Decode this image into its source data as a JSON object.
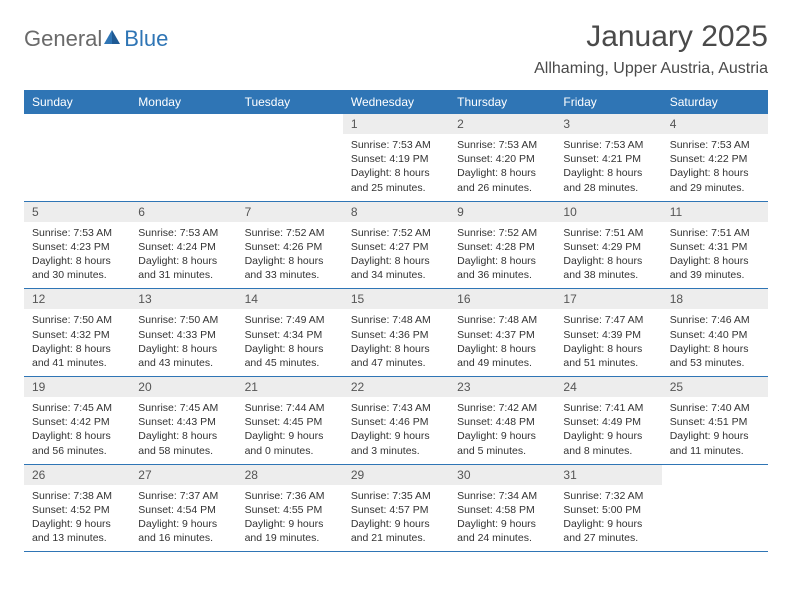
{
  "logo": {
    "text1": "General",
    "text2": "Blue"
  },
  "title": {
    "month": "January 2025",
    "location": "Allhaming, Upper Austria, Austria"
  },
  "colors": {
    "accent": "#2f75b5",
    "dayBg": "#ededed",
    "text": "#333333"
  },
  "weekdays": [
    "Sunday",
    "Monday",
    "Tuesday",
    "Wednesday",
    "Thursday",
    "Friday",
    "Saturday"
  ],
  "leadingBlanks": 3,
  "days": [
    {
      "n": "1",
      "sunrise": "7:53 AM",
      "sunset": "4:19 PM",
      "dl": "8 hours and 25 minutes."
    },
    {
      "n": "2",
      "sunrise": "7:53 AM",
      "sunset": "4:20 PM",
      "dl": "8 hours and 26 minutes."
    },
    {
      "n": "3",
      "sunrise": "7:53 AM",
      "sunset": "4:21 PM",
      "dl": "8 hours and 28 minutes."
    },
    {
      "n": "4",
      "sunrise": "7:53 AM",
      "sunset": "4:22 PM",
      "dl": "8 hours and 29 minutes."
    },
    {
      "n": "5",
      "sunrise": "7:53 AM",
      "sunset": "4:23 PM",
      "dl": "8 hours and 30 minutes."
    },
    {
      "n": "6",
      "sunrise": "7:53 AM",
      "sunset": "4:24 PM",
      "dl": "8 hours and 31 minutes."
    },
    {
      "n": "7",
      "sunrise": "7:52 AM",
      "sunset": "4:26 PM",
      "dl": "8 hours and 33 minutes."
    },
    {
      "n": "8",
      "sunrise": "7:52 AM",
      "sunset": "4:27 PM",
      "dl": "8 hours and 34 minutes."
    },
    {
      "n": "9",
      "sunrise": "7:52 AM",
      "sunset": "4:28 PM",
      "dl": "8 hours and 36 minutes."
    },
    {
      "n": "10",
      "sunrise": "7:51 AM",
      "sunset": "4:29 PM",
      "dl": "8 hours and 38 minutes."
    },
    {
      "n": "11",
      "sunrise": "7:51 AM",
      "sunset": "4:31 PM",
      "dl": "8 hours and 39 minutes."
    },
    {
      "n": "12",
      "sunrise": "7:50 AM",
      "sunset": "4:32 PM",
      "dl": "8 hours and 41 minutes."
    },
    {
      "n": "13",
      "sunrise": "7:50 AM",
      "sunset": "4:33 PM",
      "dl": "8 hours and 43 minutes."
    },
    {
      "n": "14",
      "sunrise": "7:49 AM",
      "sunset": "4:34 PM",
      "dl": "8 hours and 45 minutes."
    },
    {
      "n": "15",
      "sunrise": "7:48 AM",
      "sunset": "4:36 PM",
      "dl": "8 hours and 47 minutes."
    },
    {
      "n": "16",
      "sunrise": "7:48 AM",
      "sunset": "4:37 PM",
      "dl": "8 hours and 49 minutes."
    },
    {
      "n": "17",
      "sunrise": "7:47 AM",
      "sunset": "4:39 PM",
      "dl": "8 hours and 51 minutes."
    },
    {
      "n": "18",
      "sunrise": "7:46 AM",
      "sunset": "4:40 PM",
      "dl": "8 hours and 53 minutes."
    },
    {
      "n": "19",
      "sunrise": "7:45 AM",
      "sunset": "4:42 PM",
      "dl": "8 hours and 56 minutes."
    },
    {
      "n": "20",
      "sunrise": "7:45 AM",
      "sunset": "4:43 PM",
      "dl": "8 hours and 58 minutes."
    },
    {
      "n": "21",
      "sunrise": "7:44 AM",
      "sunset": "4:45 PM",
      "dl": "9 hours and 0 minutes."
    },
    {
      "n": "22",
      "sunrise": "7:43 AM",
      "sunset": "4:46 PM",
      "dl": "9 hours and 3 minutes."
    },
    {
      "n": "23",
      "sunrise": "7:42 AM",
      "sunset": "4:48 PM",
      "dl": "9 hours and 5 minutes."
    },
    {
      "n": "24",
      "sunrise": "7:41 AM",
      "sunset": "4:49 PM",
      "dl": "9 hours and 8 minutes."
    },
    {
      "n": "25",
      "sunrise": "7:40 AM",
      "sunset": "4:51 PM",
      "dl": "9 hours and 11 minutes."
    },
    {
      "n": "26",
      "sunrise": "7:38 AM",
      "sunset": "4:52 PM",
      "dl": "9 hours and 13 minutes."
    },
    {
      "n": "27",
      "sunrise": "7:37 AM",
      "sunset": "4:54 PM",
      "dl": "9 hours and 16 minutes."
    },
    {
      "n": "28",
      "sunrise": "7:36 AM",
      "sunset": "4:55 PM",
      "dl": "9 hours and 19 minutes."
    },
    {
      "n": "29",
      "sunrise": "7:35 AM",
      "sunset": "4:57 PM",
      "dl": "9 hours and 21 minutes."
    },
    {
      "n": "30",
      "sunrise": "7:34 AM",
      "sunset": "4:58 PM",
      "dl": "9 hours and 24 minutes."
    },
    {
      "n": "31",
      "sunrise": "7:32 AM",
      "sunset": "5:00 PM",
      "dl": "9 hours and 27 minutes."
    }
  ],
  "labels": {
    "sunrise": "Sunrise:",
    "sunset": "Sunset:",
    "daylight": "Daylight:"
  }
}
